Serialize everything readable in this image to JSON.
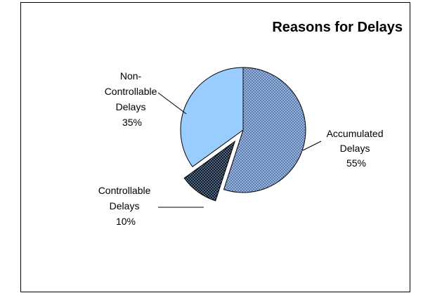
{
  "chart_data": {
    "type": "pie",
    "title": "Reasons for Delays",
    "slices": [
      {
        "label_lines": [
          "Accumulated",
          "Delays",
          "55%"
        ],
        "name": "Accumulated Delays",
        "value": 55,
        "fill": "#5b7fb3",
        "pattern": "dotted",
        "exploded": false
      },
      {
        "label_lines": [
          "Controllable",
          "Delays",
          "10%"
        ],
        "name": "Controllable Delays",
        "value": 10,
        "fill": "#0d1b2e",
        "pattern": "dotted",
        "exploded": true
      },
      {
        "label_lines": [
          "Non-",
          "Controllable",
          "Delays",
          "35%"
        ],
        "name": "Non-Controllable Delays",
        "value": 35,
        "fill": "#99ccff",
        "pattern": "none",
        "exploded": false
      }
    ],
    "start_angle": "12 o'clock",
    "direction": "clockwise",
    "legend": "none"
  }
}
